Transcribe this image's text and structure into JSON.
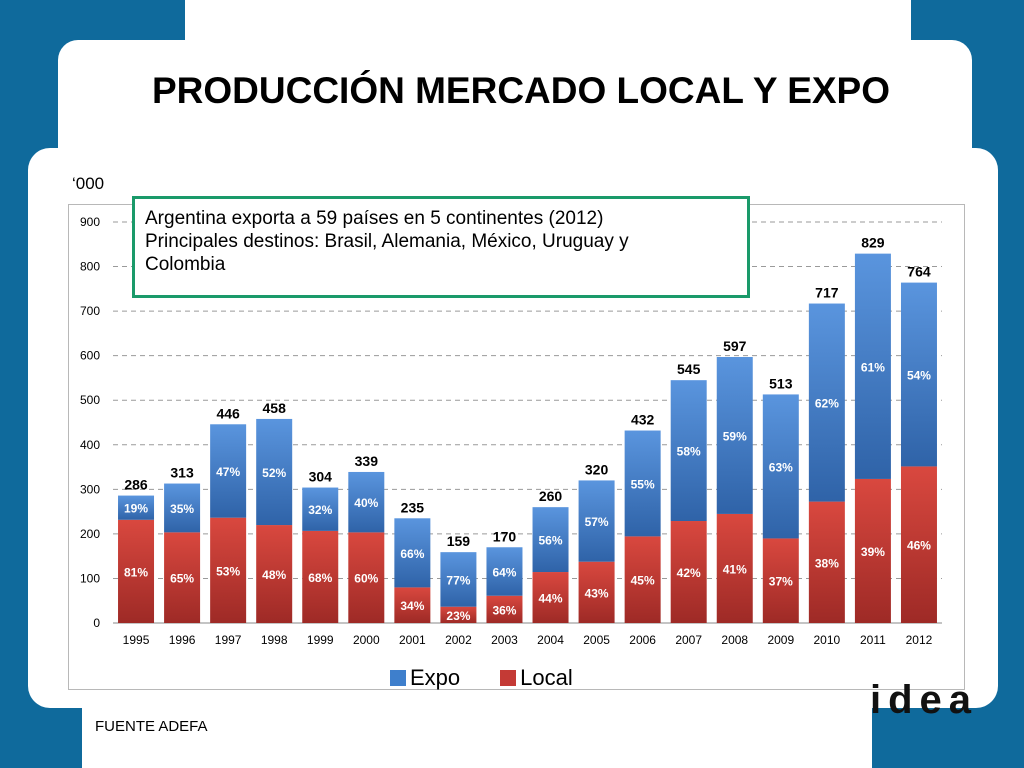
{
  "title": "PRODUCCIÓN MERCADO LOCAL Y EXPO",
  "units": "‘000",
  "note": {
    "line1": "Argentina exporta a 59 países en 5 continentes (2012)",
    "line2": "Principales destinos: Brasil, Alemania, México, Uruguay y",
    "line3": "Colombia"
  },
  "source": "FUENTE ADEFA",
  "logo_text": "idea",
  "colors": {
    "expo": "#3e7fcc",
    "local": "#c43a35",
    "note_border": "#1a9a6a",
    "background": "#0f6a9c"
  },
  "chart_data": {
    "type": "bar",
    "stacked": true,
    "categories": [
      "1995",
      "1996",
      "1997",
      "1998",
      "1999",
      "2000",
      "2001",
      "2002",
      "2003",
      "2004",
      "2005",
      "2006",
      "2007",
      "2008",
      "2009",
      "2010",
      "2011",
      "2012"
    ],
    "totals": [
      286,
      313,
      446,
      458,
      304,
      339,
      235,
      159,
      170,
      260,
      320,
      432,
      545,
      597,
      513,
      717,
      829,
      764
    ],
    "series": [
      {
        "name": "Local",
        "color": "#c43a35",
        "percent_labels": [
          "81%",
          "65%",
          "53%",
          "48%",
          "68%",
          "60%",
          "34%",
          "23%",
          "36%",
          "44%",
          "43%",
          "45%",
          "42%",
          "41%",
          "37%",
          "38%",
          "39%",
          "46%"
        ],
        "share": [
          0.81,
          0.65,
          0.53,
          0.48,
          0.68,
          0.6,
          0.34,
          0.23,
          0.36,
          0.44,
          0.43,
          0.45,
          0.42,
          0.41,
          0.37,
          0.38,
          0.39,
          0.46
        ]
      },
      {
        "name": "Expo",
        "color": "#3e7fcc",
        "percent_labels": [
          "19%",
          "35%",
          "47%",
          "52%",
          "32%",
          "40%",
          "66%",
          "77%",
          "64%",
          "56%",
          "57%",
          "55%",
          "58%",
          "59%",
          "63%",
          "62%",
          "61%",
          "54%"
        ],
        "share": [
          0.19,
          0.35,
          0.47,
          0.52,
          0.32,
          0.4,
          0.66,
          0.77,
          0.64,
          0.56,
          0.57,
          0.55,
          0.58,
          0.59,
          0.63,
          0.62,
          0.61,
          0.54
        ]
      }
    ],
    "ylim": [
      0,
      900
    ],
    "yticks": [
      0,
      100,
      200,
      300,
      400,
      500,
      600,
      700,
      800,
      900
    ],
    "grid": true,
    "legend": "bottom",
    "xlabel": "",
    "ylabel": ""
  }
}
